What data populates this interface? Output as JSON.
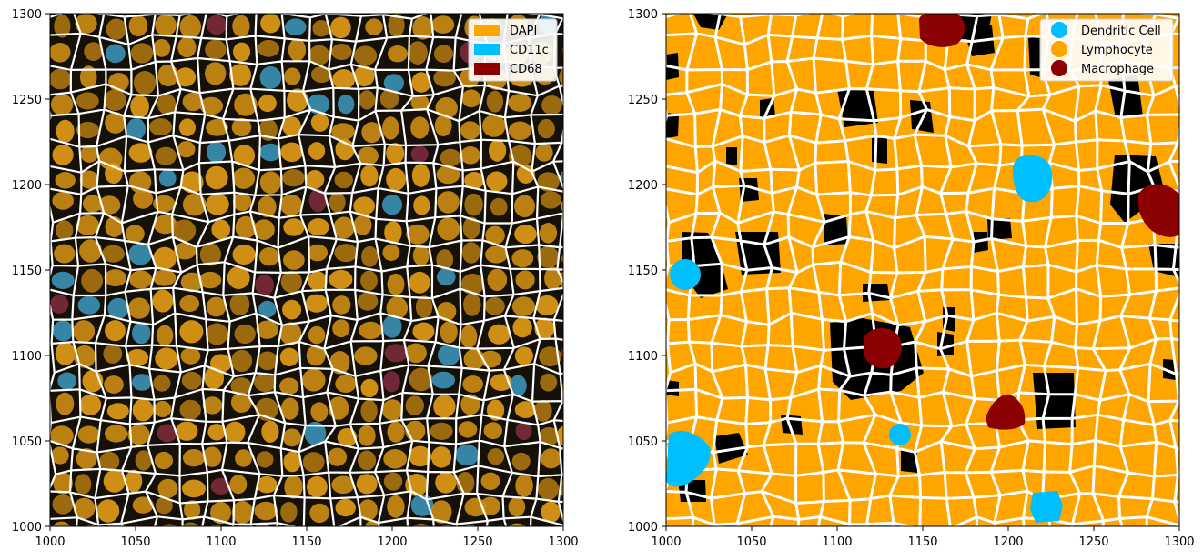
{
  "panels": {
    "left": {
      "x_ticks": [
        "1000",
        "1050",
        "1100",
        "1150",
        "1200",
        "1250",
        "1300"
      ],
      "y_ticks": [
        "1300",
        "1250",
        "1200",
        "1150",
        "1100",
        "1050",
        "1000"
      ],
      "legend": [
        {
          "label": "DAPI",
          "color": "#ffa500"
        },
        {
          "label": "CD11c",
          "color": "#00bfff"
        },
        {
          "label": "CD68",
          "color": "#8b0000"
        }
      ]
    },
    "right": {
      "x_ticks": [
        "1000",
        "1050",
        "1100",
        "1150",
        "1200",
        "1250",
        "1300"
      ],
      "y_ticks": [
        "1300",
        "1250",
        "1200",
        "1150",
        "1100",
        "1050",
        "1000"
      ],
      "legend": [
        {
          "label": "Dendritic Cell",
          "color": "#00bfff"
        },
        {
          "label": "Lymphocyte",
          "color": "#ffa500"
        },
        {
          "label": "Macrophage",
          "color": "#8b0000"
        }
      ]
    }
  }
}
